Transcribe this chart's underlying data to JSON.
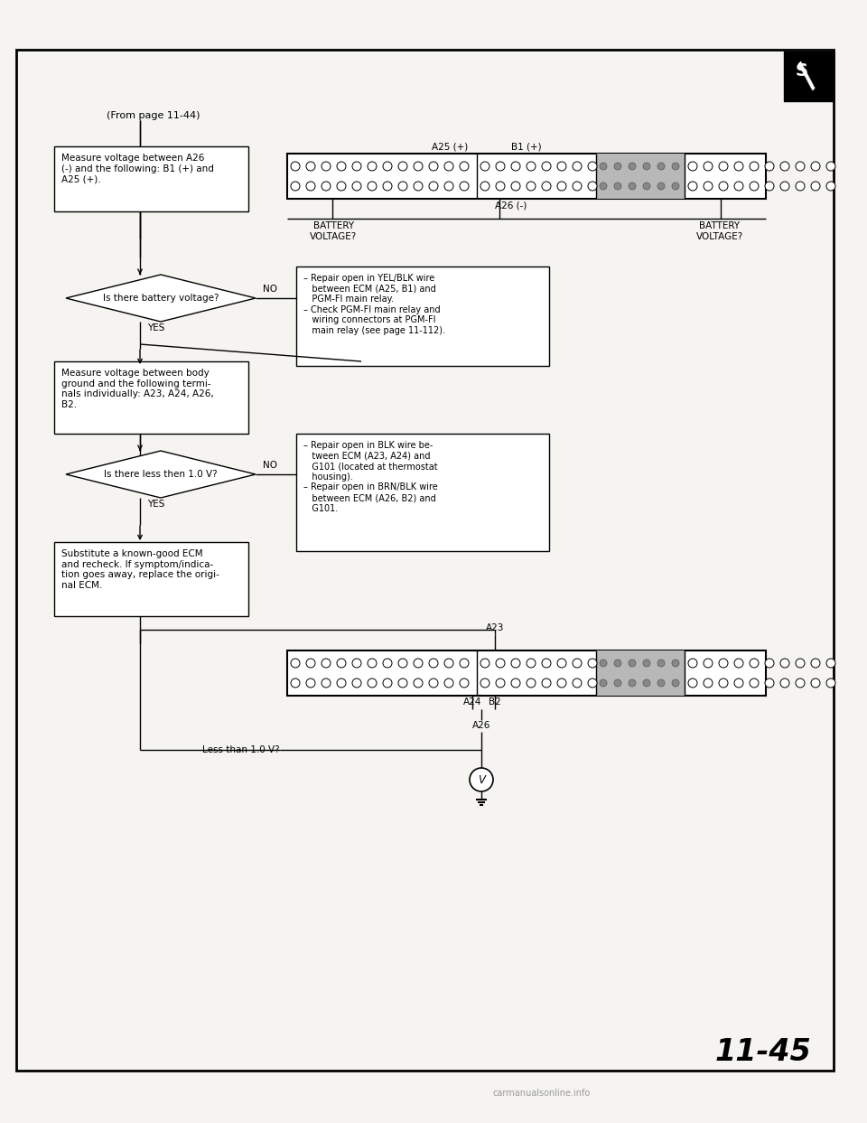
{
  "page_num": "11-45",
  "from_page": "(From page 11-44)",
  "bg_color": "#ffffff",
  "box1_text": "Measure voltage between A26\n(-) and the following: B1 (+) and\nA25 (+).",
  "box2_text": "Measure voltage between body\nground and the following termi-\nnals individually: A23, A24, A26,\nB2.",
  "box3_text": "Substitute a known-good ECM\nand recheck. If symptom/indica-\ntion goes away, replace the origi-\nnal ECM.",
  "diamond1_text": "Is there battery voltage?",
  "diamond2_text": "Is there less then 1.0 V?",
  "no_box1_line1": "– Repair open in YEL/BLK wire",
  "no_box1_line2": "   between ECM (A25, B1) and",
  "no_box1_line3": "   PGM-FI main relay.",
  "no_box1_line4": "– Check PGM-FI main relay and",
  "no_box1_line5": "   wiring connectors at PGM-FI",
  "no_box1_line6": "   main relay (see page 11-112).",
  "no_box2_line1": "– Repair open in BLK wire be-",
  "no_box2_line2": "   tween ECM (A23, A24) and",
  "no_box2_line3": "   G101 (located at thermostat",
  "no_box2_line4": "   housing).",
  "no_box2_line5": "– Repair open in BRN/BLK wire",
  "no_box2_line6": "   between ECM (A26, B2) and",
  "no_box2_line7": "   G101.",
  "yes_label": "YES",
  "no_label": "NO",
  "batt_volt": "BATTERY\nVOLTAGE?",
  "a25_label": "A25 (+)",
  "b1_label": "B1 (+)",
  "a26_minus": "A26 (-)",
  "a23_label": "A23",
  "a24_label": "A24",
  "b2_label": "B2",
  "a26_label": "A26",
  "less_10v": "Less than 1.0 V?"
}
